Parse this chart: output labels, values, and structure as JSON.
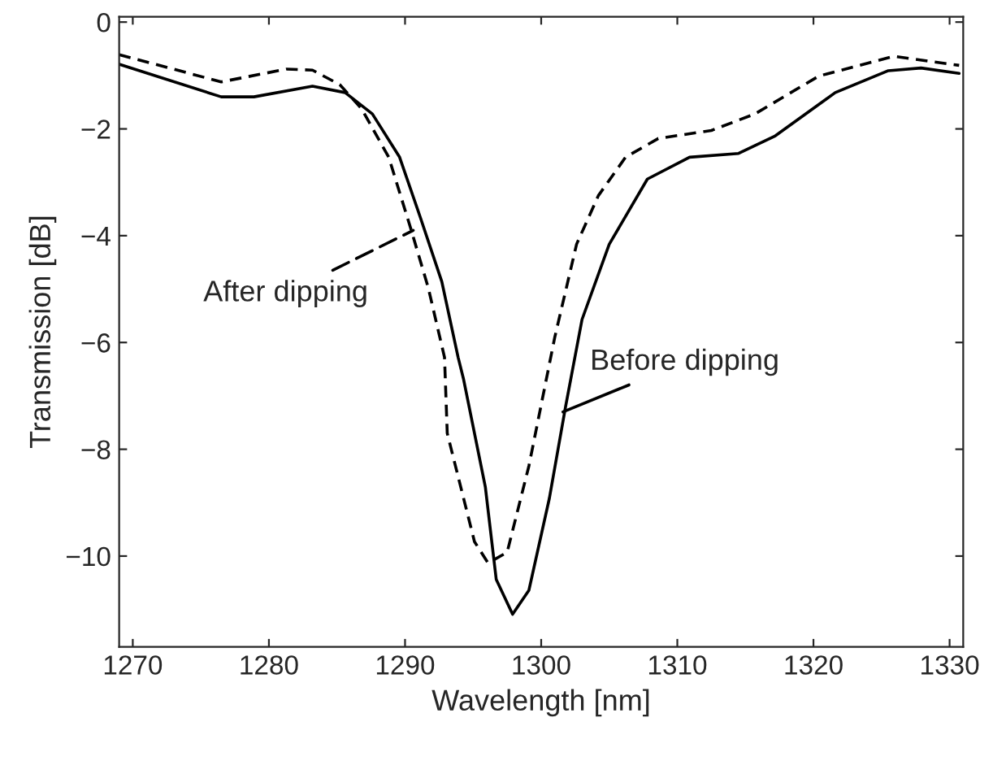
{
  "chart_data": {
    "type": "line",
    "xlabel": "Wavelength [nm]",
    "ylabel": "Transmission [dB]",
    "xlim": [
      1269,
      1331
    ],
    "ylim": [
      -11.7,
      0.1
    ],
    "xticks": [
      1270,
      1280,
      1290,
      1300,
      1310,
      1320,
      1330
    ],
    "yticks": [
      {
        "value": 0,
        "label": "0"
      },
      {
        "value": -2,
        "label": "−2"
      },
      {
        "value": -4,
        "label": "−4"
      },
      {
        "value": -6,
        "label": "−6"
      },
      {
        "value": -8,
        "label": "−8"
      },
      {
        "value": -10,
        "label": "−10"
      }
    ],
    "grid": false,
    "legend": false,
    "marker": "none",
    "series": [
      {
        "color": "#000000",
        "line_style": "solid",
        "x": [
          1269,
          1276.5,
          1278.9,
          1283.2,
          1285.6,
          1287.6,
          1289.6,
          1291.1,
          1292.7,
          1293.9,
          1294.3,
          1295.9,
          1296.7,
          1297.9,
          1299.1,
          1300.6,
          1301.8,
          1303.0,
          1305.0,
          1307.8,
          1310.9,
          1314.5,
          1317.2,
          1321.6,
          1325.5,
          1327.9,
          1330.7
        ],
        "values": [
          -0.79,
          -1.4,
          -1.4,
          -1.2,
          -1.32,
          -1.72,
          -2.53,
          -3.64,
          -4.86,
          -6.28,
          -6.69,
          -8.71,
          -10.44,
          -11.09,
          -10.64,
          -8.92,
          -7.19,
          -5.57,
          -4.16,
          -2.94,
          -2.53,
          -2.46,
          -2.13,
          -1.32,
          -0.91,
          -0.86,
          -0.96
        ]
      },
      {
        "color": "#000000",
        "line_style": "dashed",
        "x": [
          1269,
          1276.5,
          1281.3,
          1283.2,
          1285.2,
          1286.8,
          1288.8,
          1290.4,
          1291.7,
          1292.9,
          1293.1,
          1295.1,
          1296.1,
          1297.5,
          1299.1,
          1301.0,
          1302.6,
          1304.2,
          1306.2,
          1308.6,
          1312.5,
          1315.7,
          1320.4,
          1325.9,
          1330.7
        ],
        "values": [
          -0.61,
          -1.12,
          -0.88,
          -0.9,
          -1.17,
          -1.62,
          -2.53,
          -3.85,
          -4.97,
          -6.28,
          -7.7,
          -9.73,
          -10.13,
          -9.93,
          -8.31,
          -5.9,
          -4.16,
          -3.25,
          -2.53,
          -2.18,
          -2.03,
          -1.72,
          -1.01,
          -0.64,
          -0.81
        ]
      }
    ],
    "annotations": [
      {
        "text": "After dipping",
        "x": 1290.6,
        "y": -3.9
      },
      {
        "text": "Before dipping",
        "x": 1301.6,
        "y": -7.3
      }
    ]
  }
}
